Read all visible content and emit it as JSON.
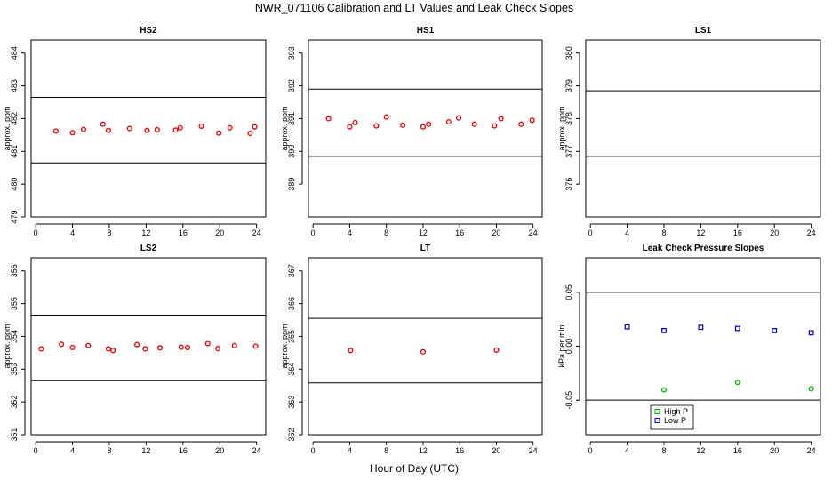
{
  "figure": {
    "title": "NWR_071106  Calibration and LT Values and Leak Check Slopes",
    "xlabel": "Hour of Day (UTC)"
  },
  "chart_data": [
    {
      "id": "hs2",
      "type": "scatter",
      "title": "HS2",
      "ylabel": "approx. ppm",
      "xlim": [
        -0.5,
        25
      ],
      "ylim": [
        479,
        484.4
      ],
      "xticks": [
        0,
        4,
        8,
        12,
        16,
        20,
        24
      ],
      "yticks": [
        479,
        480,
        481,
        482,
        483,
        484
      ],
      "hlines": [
        482.65,
        480.65
      ],
      "series": [
        {
          "color": "#e00000",
          "x": [
            2.2,
            4.0,
            5.2,
            7.3,
            7.9,
            10.2,
            12.1,
            13.2,
            15.2,
            15.7,
            18.0,
            19.9,
            21.1,
            23.3,
            23.8
          ],
          "y": [
            481.62,
            481.57,
            481.67,
            481.83,
            481.64,
            481.7,
            481.64,
            481.66,
            481.65,
            481.72,
            481.77,
            481.56,
            481.72,
            481.55,
            481.75
          ]
        }
      ]
    },
    {
      "id": "hs1",
      "type": "scatter",
      "title": "HS1",
      "ylabel": "approx. ppm",
      "xlim": [
        -0.5,
        25
      ],
      "ylim": [
        388,
        393.4
      ],
      "xticks": [
        0,
        4,
        8,
        12,
        16,
        20,
        24
      ],
      "yticks": [
        389,
        390,
        391,
        392,
        393
      ],
      "hlines": [
        391.9,
        389.85
      ],
      "series": [
        {
          "color": "#e00000",
          "x": [
            1.7,
            4.0,
            4.6,
            6.9,
            8.0,
            9.8,
            12.0,
            12.6,
            14.8,
            15.9,
            17.6,
            19.8,
            20.5,
            22.7,
            23.9
          ],
          "y": [
            391.0,
            390.75,
            390.88,
            390.78,
            391.05,
            390.8,
            390.75,
            390.83,
            390.9,
            391.02,
            390.83,
            390.78,
            391.0,
            390.83,
            390.95
          ]
        }
      ]
    },
    {
      "id": "ls1",
      "type": "scatter",
      "title": "LS1",
      "ylabel": "approx. ppm",
      "xlim": [
        -0.5,
        25
      ],
      "ylim": [
        375,
        380.4
      ],
      "xticks": [
        0,
        4,
        8,
        12,
        16,
        20,
        24
      ],
      "yticks": [
        376,
        377,
        378,
        379,
        380
      ],
      "hlines": [
        378.85,
        376.85
      ],
      "series": []
    },
    {
      "id": "ls2",
      "type": "scatter",
      "title": "LS2",
      "ylabel": "approx. ppm",
      "xlim": [
        -0.5,
        25
      ],
      "ylim": [
        351,
        356.4
      ],
      "xticks": [
        0,
        4,
        8,
        12,
        16,
        20,
        24
      ],
      "yticks": [
        351,
        352,
        353,
        354,
        355,
        356
      ],
      "hlines": [
        354.65,
        352.65
      ],
      "series": [
        {
          "color": "#e00000",
          "x": [
            0.6,
            2.8,
            4.0,
            5.7,
            7.9,
            8.4,
            11.0,
            11.9,
            13.5,
            15.8,
            16.5,
            18.7,
            19.8,
            21.6,
            23.9
          ],
          "y": [
            353.62,
            353.76,
            353.66,
            353.72,
            353.62,
            353.57,
            353.75,
            353.62,
            353.65,
            353.67,
            353.66,
            353.78,
            353.63,
            353.72,
            353.7
          ]
        }
      ]
    },
    {
      "id": "lt",
      "type": "scatter",
      "title": "LT",
      "ylabel": "approx. ppm",
      "xlim": [
        -0.5,
        25
      ],
      "ylim": [
        362,
        367.4
      ],
      "xticks": [
        0,
        4,
        8,
        12,
        16,
        20,
        24
      ],
      "yticks": [
        362,
        363,
        364,
        365,
        366,
        367
      ],
      "hlines": [
        365.55,
        363.58
      ],
      "series": [
        {
          "color": "#e00000",
          "x": [
            4.1,
            12.0,
            20.0
          ],
          "y": [
            364.57,
            364.53,
            364.58
          ]
        }
      ]
    },
    {
      "id": "leak",
      "type": "scatter",
      "title": "Leak Check Pressure Slopes",
      "ylabel": "kPa per min",
      "xlim": [
        -0.5,
        25
      ],
      "ylim": [
        -0.082,
        0.082
      ],
      "xticks": [
        0,
        4,
        8,
        12,
        16,
        20,
        24
      ],
      "yticks": [
        -0.05,
        0.0,
        0.05
      ],
      "ytick_labels": [
        "-0.05",
        "0.00",
        "0.05"
      ],
      "hlines": [
        0.05,
        -0.05
      ],
      "legend": {
        "placement": "bottom-center"
      },
      "series": [
        {
          "name": "High P",
          "color": "#00b000",
          "x": [
            8,
            16,
            24
          ],
          "y": [
            -0.0405,
            -0.0335,
            -0.0395
          ]
        },
        {
          "name": "Low P",
          "color": "#0000cc",
          "x": [
            4,
            8,
            12,
            16,
            20,
            24
          ],
          "y": [
            0.018,
            0.0145,
            0.0175,
            0.0165,
            0.0145,
            0.0125
          ]
        }
      ]
    }
  ]
}
